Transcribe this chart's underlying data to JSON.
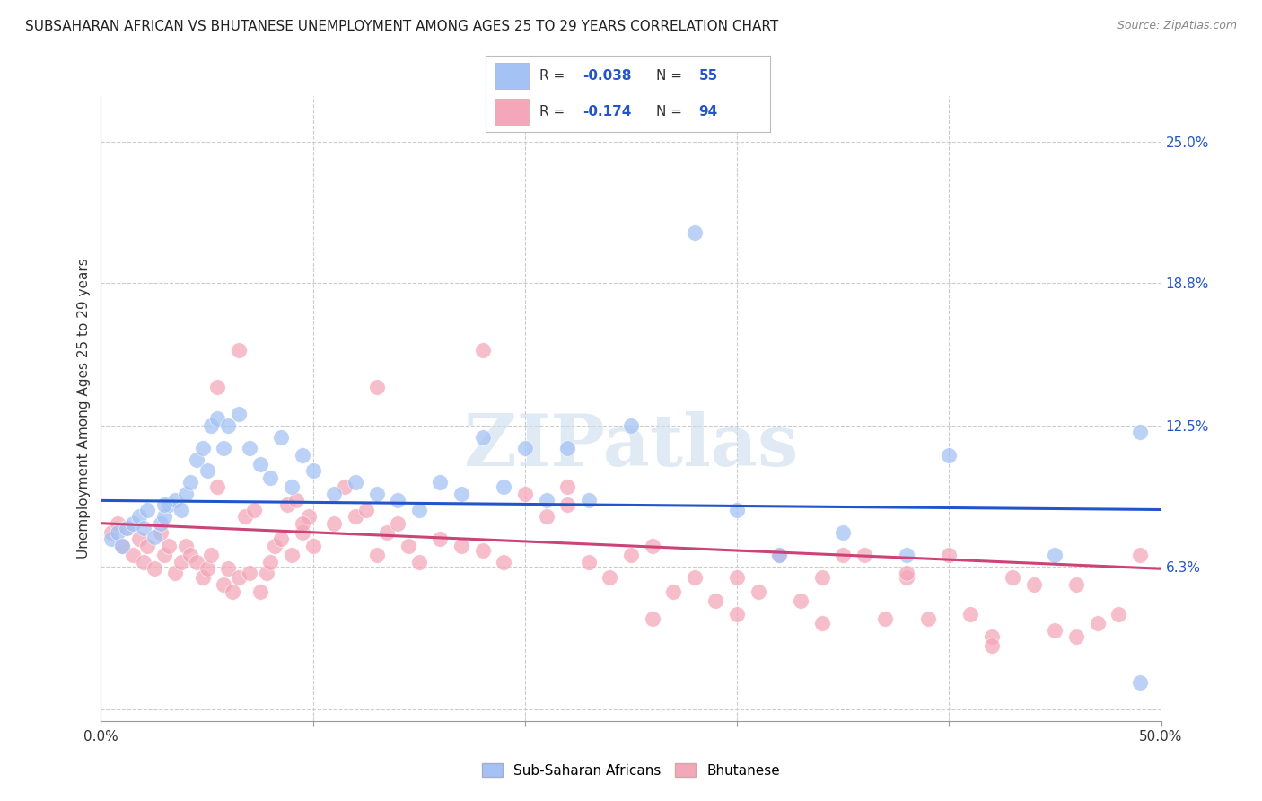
{
  "title": "SUBSAHARAN AFRICAN VS BHUTANESE UNEMPLOYMENT AMONG AGES 25 TO 29 YEARS CORRELATION CHART",
  "source": "Source: ZipAtlas.com",
  "ylabel": "Unemployment Among Ages 25 to 29 years",
  "xlim": [
    0.0,
    0.5
  ],
  "ylim": [
    -0.005,
    0.27
  ],
  "xticks": [
    0.0,
    0.1,
    0.2,
    0.3,
    0.4,
    0.5
  ],
  "yticks_right": [
    0.0,
    0.063,
    0.125,
    0.188,
    0.25
  ],
  "ytick_right_labels": [
    "",
    "6.3%",
    "12.5%",
    "18.8%",
    "25.0%"
  ],
  "grid_color": "#cccccc",
  "background_color": "#ffffff",
  "watermark": "ZIPatlas",
  "color_blue": "#a4c2f4",
  "color_pink": "#f4a7b9",
  "line_blue": "#2255cc",
  "line_pink": "#cc4477",
  "blue_line_start_y": 0.092,
  "blue_line_end_y": 0.088,
  "pink_line_start_y": 0.082,
  "pink_line_end_y": 0.062,
  "scatter_blue_x": [
    0.005,
    0.008,
    0.01,
    0.012,
    0.015,
    0.018,
    0.02,
    0.022,
    0.025,
    0.028,
    0.03,
    0.032,
    0.035,
    0.038,
    0.04,
    0.042,
    0.045,
    0.048,
    0.05,
    0.052,
    0.055,
    0.058,
    0.06,
    0.065,
    0.07,
    0.075,
    0.08,
    0.085,
    0.09,
    0.095,
    0.1,
    0.11,
    0.12,
    0.13,
    0.14,
    0.15,
    0.16,
    0.17,
    0.18,
    0.19,
    0.2,
    0.21,
    0.22,
    0.23,
    0.25,
    0.28,
    0.3,
    0.32,
    0.35,
    0.38,
    0.4,
    0.45,
    0.49,
    0.49,
    0.03
  ],
  "scatter_blue_y": [
    0.075,
    0.078,
    0.072,
    0.08,
    0.082,
    0.085,
    0.08,
    0.088,
    0.076,
    0.082,
    0.085,
    0.09,
    0.092,
    0.088,
    0.095,
    0.1,
    0.11,
    0.115,
    0.105,
    0.125,
    0.128,
    0.115,
    0.125,
    0.13,
    0.115,
    0.108,
    0.102,
    0.12,
    0.098,
    0.112,
    0.105,
    0.095,
    0.1,
    0.095,
    0.092,
    0.088,
    0.1,
    0.095,
    0.12,
    0.098,
    0.115,
    0.092,
    0.115,
    0.092,
    0.125,
    0.21,
    0.088,
    0.068,
    0.078,
    0.068,
    0.112,
    0.068,
    0.122,
    0.012,
    0.09
  ],
  "scatter_pink_x": [
    0.005,
    0.008,
    0.01,
    0.012,
    0.015,
    0.018,
    0.02,
    0.022,
    0.025,
    0.028,
    0.03,
    0.032,
    0.035,
    0.038,
    0.04,
    0.042,
    0.045,
    0.048,
    0.05,
    0.052,
    0.055,
    0.058,
    0.06,
    0.062,
    0.065,
    0.068,
    0.07,
    0.072,
    0.075,
    0.078,
    0.08,
    0.082,
    0.085,
    0.088,
    0.09,
    0.092,
    0.095,
    0.098,
    0.1,
    0.11,
    0.115,
    0.12,
    0.125,
    0.13,
    0.135,
    0.14,
    0.145,
    0.15,
    0.16,
    0.17,
    0.18,
    0.19,
    0.2,
    0.21,
    0.22,
    0.23,
    0.24,
    0.25,
    0.26,
    0.27,
    0.28,
    0.29,
    0.3,
    0.31,
    0.32,
    0.33,
    0.34,
    0.35,
    0.36,
    0.37,
    0.38,
    0.39,
    0.4,
    0.41,
    0.42,
    0.43,
    0.44,
    0.45,
    0.46,
    0.47,
    0.48,
    0.49,
    0.055,
    0.065,
    0.095,
    0.13,
    0.18,
    0.22,
    0.26,
    0.3,
    0.34,
    0.38,
    0.42,
    0.46
  ],
  "scatter_pink_y": [
    0.078,
    0.082,
    0.072,
    0.08,
    0.068,
    0.075,
    0.065,
    0.072,
    0.062,
    0.078,
    0.068,
    0.072,
    0.06,
    0.065,
    0.072,
    0.068,
    0.065,
    0.058,
    0.062,
    0.068,
    0.098,
    0.055,
    0.062,
    0.052,
    0.058,
    0.085,
    0.06,
    0.088,
    0.052,
    0.06,
    0.065,
    0.072,
    0.075,
    0.09,
    0.068,
    0.092,
    0.078,
    0.085,
    0.072,
    0.082,
    0.098,
    0.085,
    0.088,
    0.068,
    0.078,
    0.082,
    0.072,
    0.065,
    0.075,
    0.072,
    0.07,
    0.065,
    0.095,
    0.085,
    0.09,
    0.065,
    0.058,
    0.068,
    0.072,
    0.052,
    0.058,
    0.048,
    0.058,
    0.052,
    0.068,
    0.048,
    0.058,
    0.068,
    0.068,
    0.04,
    0.058,
    0.04,
    0.068,
    0.042,
    0.032,
    0.058,
    0.055,
    0.035,
    0.055,
    0.038,
    0.042,
    0.068,
    0.142,
    0.158,
    0.082,
    0.142,
    0.158,
    0.098,
    0.04,
    0.042,
    0.038,
    0.06,
    0.028,
    0.032
  ]
}
